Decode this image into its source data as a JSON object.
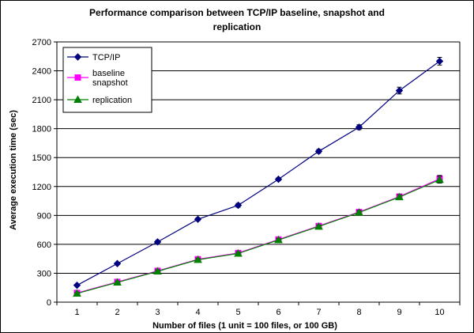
{
  "chart_data": {
    "type": "line",
    "title_line1": "Performance comparison between TCP/IP baseline, snapshot and",
    "title_line2": "replication",
    "xlabel": "Number of files (1 unit = 100 files, or 100 GB)",
    "ylabel": "Average execution time (sec)",
    "categories": [
      "1",
      "2",
      "3",
      "4",
      "5",
      "6",
      "7",
      "8",
      "9",
      "10"
    ],
    "ylim": [
      0,
      2700
    ],
    "yticks": [
      0,
      300,
      600,
      900,
      1200,
      1500,
      1800,
      2100,
      2400,
      2700
    ],
    "grid": true,
    "legend_position": "top-left",
    "series": [
      {
        "legend_lines": [
          "TCP/IP"
        ],
        "color": "#000080",
        "marker": "diamond",
        "values": [
          175,
          400,
          625,
          860,
          1005,
          1275,
          1565,
          1815,
          2195,
          2500
        ],
        "error": [
          10,
          10,
          15,
          15,
          20,
          15,
          20,
          25,
          35,
          40
        ]
      },
      {
        "legend_lines": [
          "baseline",
          "snapshot"
        ],
        "color": "#ff00ff",
        "marker": "square",
        "values": [
          95,
          210,
          325,
          445,
          510,
          650,
          790,
          935,
          1095,
          1280
        ],
        "error": [
          10,
          10,
          15,
          15,
          15,
          15,
          15,
          20,
          25,
          35
        ]
      },
      {
        "legend_lines": [
          "replication"
        ],
        "color": "#008000",
        "marker": "triangle",
        "values": [
          90,
          205,
          320,
          440,
          505,
          645,
          785,
          930,
          1090,
          1270
        ],
        "error": [
          10,
          10,
          15,
          15,
          15,
          15,
          15,
          20,
          25,
          35
        ]
      }
    ]
  }
}
